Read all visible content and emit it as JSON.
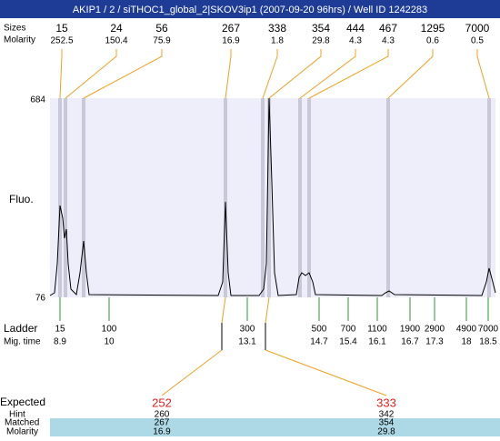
{
  "header": {
    "title": "AKIP1 / 2 / siTHOC1_global_2|SKOV3ip1 (2007-09-20 96hrs) / Well ID 1242283"
  },
  "peaks": {
    "size_label": "Sizes",
    "molarity_label": "Molarity",
    "sizes": [
      15,
      24,
      56,
      267,
      338,
      354,
      444,
      467,
      1295,
      7000
    ],
    "molarity": [
      252.5,
      150.4,
      75.9,
      16.9,
      1.8,
      29.8,
      4.3,
      4.3,
      0.6,
      0.5
    ]
  },
  "plot": {
    "y_label": "Fluo.",
    "y_top": 684,
    "y_bottom": 76
  },
  "ladder": {
    "label": "Ladder",
    "time_label": "Mig. time",
    "sizes": [
      15,
      100,
      300,
      500,
      700,
      1100,
      1900,
      2900,
      4900,
      7000
    ],
    "times": [
      8.9,
      10,
      13.1,
      14.7,
      15.4,
      16.1,
      16.7,
      17.3,
      18,
      18.5
    ]
  },
  "expected": {
    "label": "Expected",
    "hint_label": "Hint",
    "matched_label": "Matched",
    "molarity_label": "Molarity",
    "items": [
      {
        "expected": 252,
        "hint": 260,
        "matched": 267,
        "molarity": 16.9
      },
      {
        "expected": 333,
        "hint": 342,
        "matched": 354,
        "molarity": 29.8
      }
    ]
  }
}
